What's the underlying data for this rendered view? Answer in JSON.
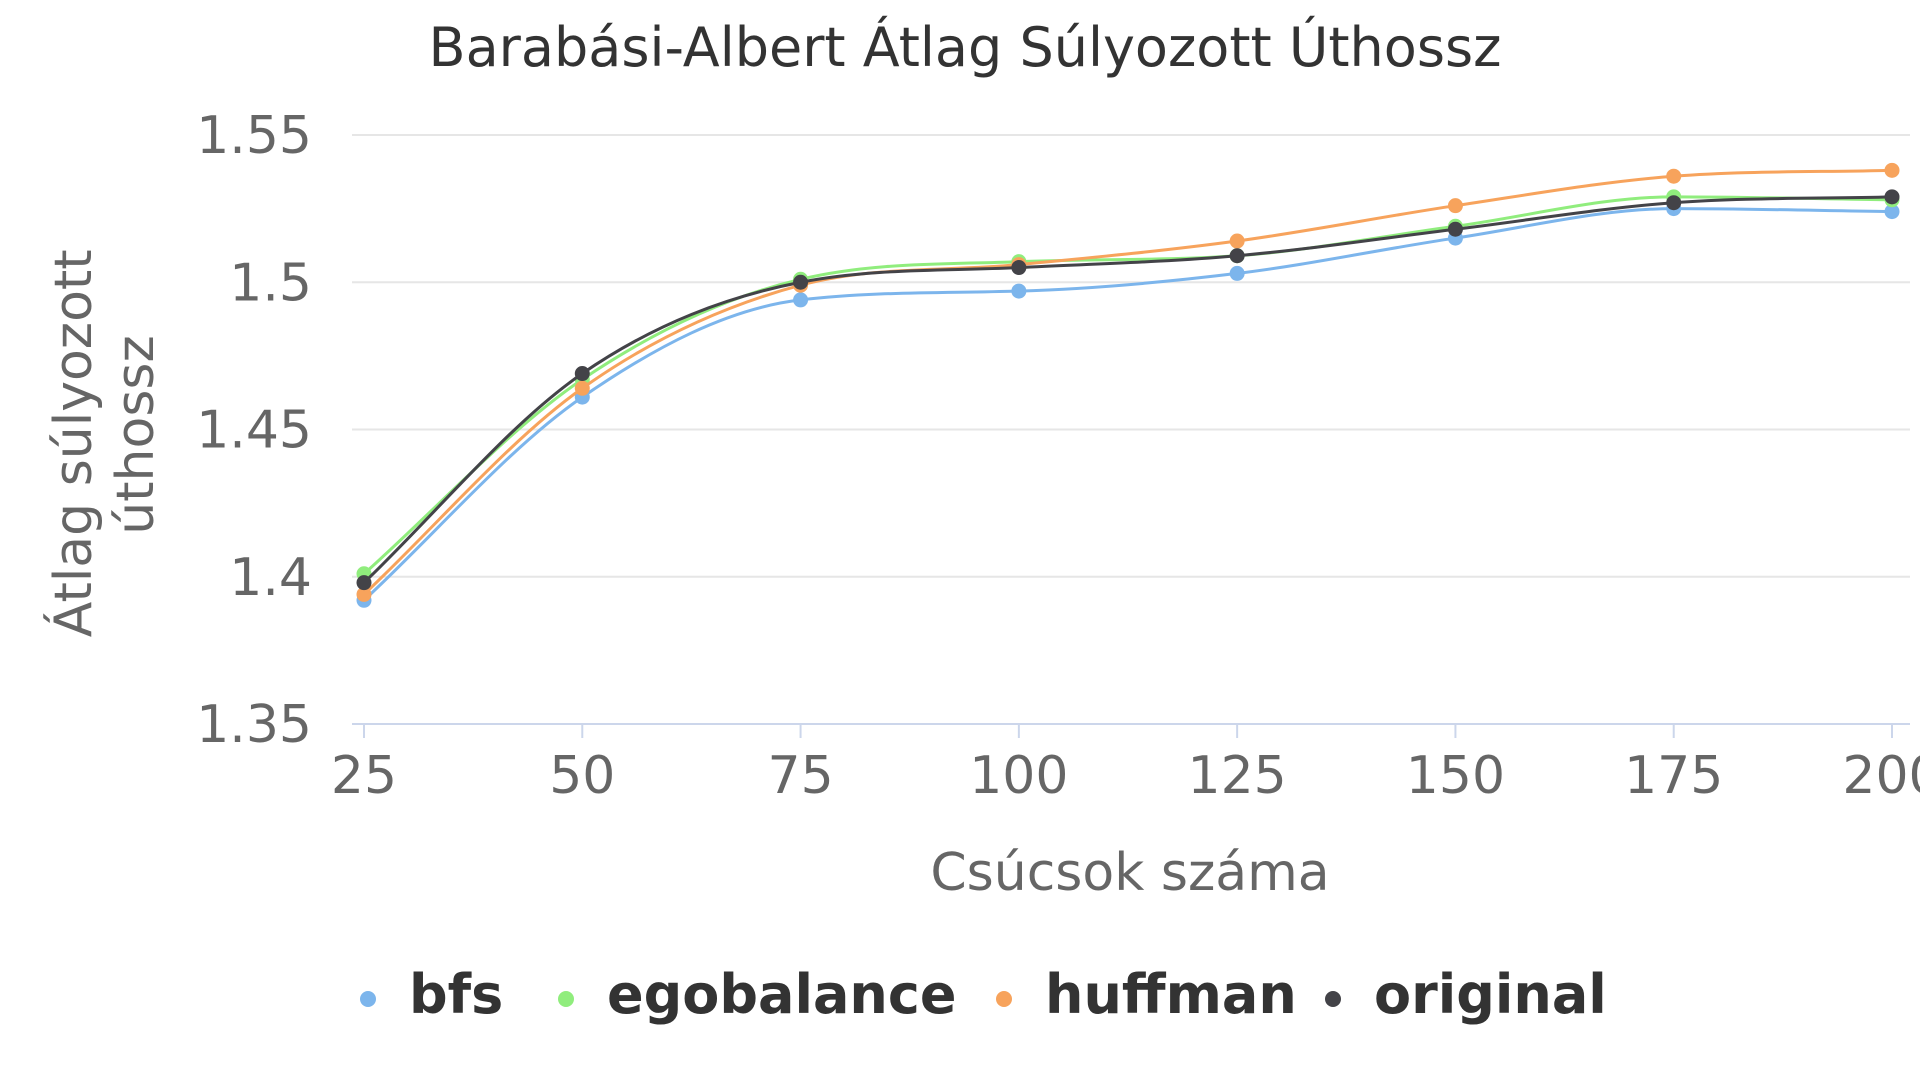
{
  "chart_data": {
    "type": "line",
    "title": "Barabási-Albert Átlag Súlyozott Úthossz",
    "xlabel": "Csúcsok száma",
    "ylabel_lines": [
      "Átlag súlyozott",
      "úthossz"
    ],
    "x": [
      25,
      50,
      75,
      100,
      125,
      150,
      175,
      200
    ],
    "x_tick_labels": [
      "25",
      "50",
      "75",
      "100",
      "125",
      "150",
      "175",
      "200"
    ],
    "xlim": [
      25,
      200
    ],
    "ylim": [
      1.35,
      1.55
    ],
    "y_ticks": [
      1.35,
      1.4,
      1.45,
      1.5,
      1.55
    ],
    "y_tick_labels": [
      "1.35",
      "1.4",
      "1.45",
      "1.5",
      "1.55"
    ],
    "grid": true,
    "legend_position": "bottom-center",
    "series": [
      {
        "name": "bfs",
        "color": "#7cb5ec",
        "values": [
          1.392,
          1.461,
          1.494,
          1.497,
          1.503,
          1.515,
          1.525,
          1.524
        ]
      },
      {
        "name": "egobalance",
        "color": "#90ed7d",
        "values": [
          1.401,
          1.467,
          1.501,
          1.507,
          1.509,
          1.519,
          1.529,
          1.528
        ]
      },
      {
        "name": "huffman",
        "color": "#f7a35c",
        "values": [
          1.394,
          1.464,
          1.499,
          1.506,
          1.514,
          1.526,
          1.536,
          1.538
        ]
      },
      {
        "name": "original",
        "color": "#434348",
        "values": [
          1.398,
          1.469,
          1.5,
          1.505,
          1.509,
          1.518,
          1.527,
          1.529
        ]
      }
    ]
  }
}
